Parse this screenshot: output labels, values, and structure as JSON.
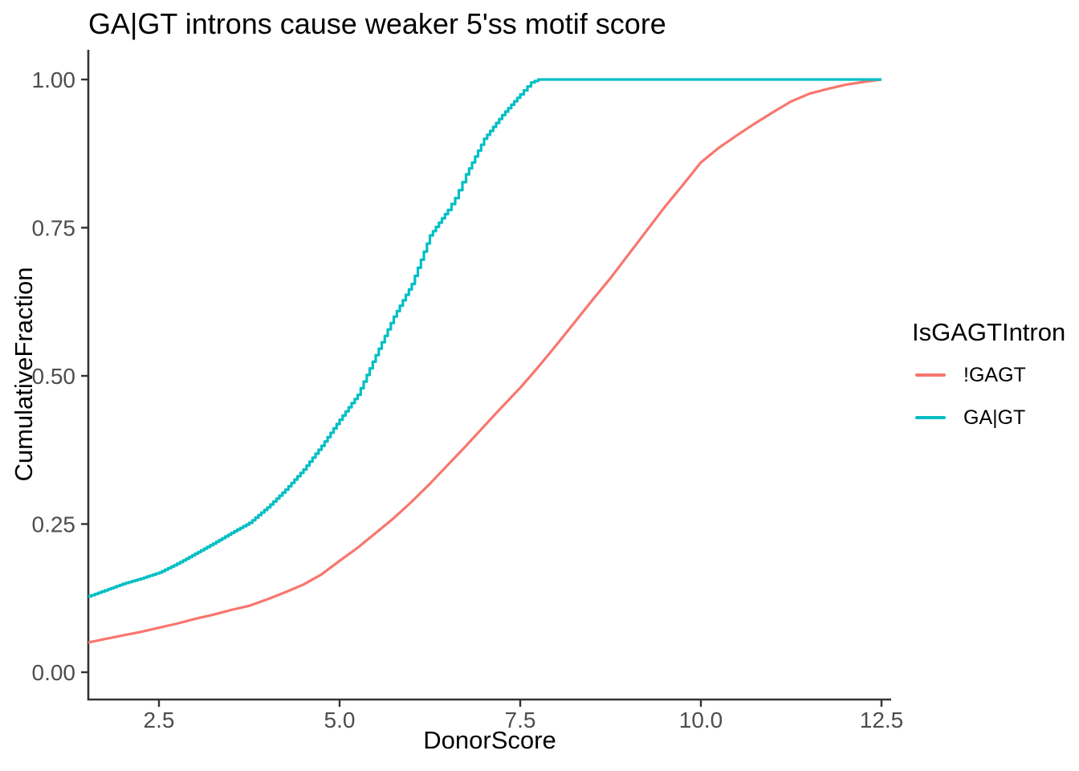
{
  "title": "GA|GT introns cause weaker 5'ss motif score",
  "x_axis": {
    "label": "DonorScore",
    "ticks": [
      {
        "value": 2.5,
        "label": "2.5"
      },
      {
        "value": 5.0,
        "label": "5.0"
      },
      {
        "value": 7.5,
        "label": "7.5"
      },
      {
        "value": 10.0,
        "label": "10.0"
      },
      {
        "value": 12.5,
        "label": "12.5"
      }
    ],
    "range": [
      1.52,
      12.63
    ]
  },
  "y_axis": {
    "label": "CumulativeFraction",
    "ticks": [
      {
        "value": 0.0,
        "label": "0.00"
      },
      {
        "value": 0.25,
        "label": "0.25"
      },
      {
        "value": 0.5,
        "label": "0.50"
      },
      {
        "value": 0.75,
        "label": "0.75"
      },
      {
        "value": 1.0,
        "label": "1.00"
      }
    ],
    "range": [
      -0.05,
      1.05
    ]
  },
  "legend": {
    "title": "IsGAGTIntron",
    "entries": [
      {
        "label": "!GAGT",
        "color": "#F8766D"
      },
      {
        "label": "GA|GT",
        "color": "#00BFC4"
      }
    ]
  },
  "colors": {
    "axis_line": "#333333",
    "tick_label": "#4D4D4D",
    "text": "#000000",
    "background": "#FFFFFF",
    "series_not_gagt": "#F8766D",
    "series_gagt": "#00BFC4"
  },
  "chart_data": {
    "type": "line",
    "subtype": "ecdf",
    "title": "GA|GT introns cause weaker 5'ss motif score",
    "xlabel": "DonorScore",
    "ylabel": "CumulativeFraction",
    "xlim": [
      1.52,
      12.63
    ],
    "ylim": [
      -0.05,
      1.05
    ],
    "grid": false,
    "legend_position": "right",
    "legend_title": "IsGAGTIntron",
    "series": [
      {
        "name": "!GAGT",
        "color": "#F8766D",
        "style": "smooth",
        "points": [
          [
            1.52,
            0.05
          ],
          [
            1.75,
            0.056
          ],
          [
            2.0,
            0.062
          ],
          [
            2.25,
            0.068
          ],
          [
            2.5,
            0.075
          ],
          [
            2.75,
            0.082
          ],
          [
            3.0,
            0.09
          ],
          [
            3.25,
            0.097
          ],
          [
            3.5,
            0.105
          ],
          [
            3.75,
            0.112
          ],
          [
            4.0,
            0.123
          ],
          [
            4.25,
            0.135
          ],
          [
            4.5,
            0.148
          ],
          [
            4.75,
            0.165
          ],
          [
            5.0,
            0.188
          ],
          [
            5.25,
            0.21
          ],
          [
            5.5,
            0.235
          ],
          [
            5.75,
            0.26
          ],
          [
            6.0,
            0.288
          ],
          [
            6.25,
            0.318
          ],
          [
            6.5,
            0.35
          ],
          [
            6.75,
            0.382
          ],
          [
            7.0,
            0.415
          ],
          [
            7.25,
            0.448
          ],
          [
            7.5,
            0.48
          ],
          [
            7.75,
            0.515
          ],
          [
            8.0,
            0.552
          ],
          [
            8.25,
            0.59
          ],
          [
            8.5,
            0.628
          ],
          [
            8.75,
            0.665
          ],
          [
            9.0,
            0.705
          ],
          [
            9.25,
            0.745
          ],
          [
            9.5,
            0.785
          ],
          [
            9.75,
            0.822
          ],
          [
            10.0,
            0.86
          ],
          [
            10.25,
            0.885
          ],
          [
            10.5,
            0.906
          ],
          [
            10.75,
            0.926
          ],
          [
            11.0,
            0.945
          ],
          [
            11.25,
            0.963
          ],
          [
            11.5,
            0.976
          ],
          [
            11.75,
            0.984
          ],
          [
            12.0,
            0.991
          ],
          [
            12.25,
            0.996
          ],
          [
            12.5,
            1.0
          ]
        ]
      },
      {
        "name": "GA|GT",
        "color": "#00BFC4",
        "style": "step",
        "points": [
          [
            1.52,
            0.128
          ],
          [
            1.75,
            0.138
          ],
          [
            2.0,
            0.149
          ],
          [
            2.25,
            0.158
          ],
          [
            2.5,
            0.168
          ],
          [
            2.75,
            0.183
          ],
          [
            3.0,
            0.2
          ],
          [
            3.25,
            0.217
          ],
          [
            3.5,
            0.235
          ],
          [
            3.75,
            0.252
          ],
          [
            4.0,
            0.278
          ],
          [
            4.25,
            0.308
          ],
          [
            4.5,
            0.342
          ],
          [
            4.75,
            0.382
          ],
          [
            5.0,
            0.426
          ],
          [
            5.25,
            0.468
          ],
          [
            5.5,
            0.535
          ],
          [
            5.75,
            0.6
          ],
          [
            6.0,
            0.655
          ],
          [
            6.25,
            0.737
          ],
          [
            6.5,
            0.78
          ],
          [
            6.6,
            0.8
          ],
          [
            6.75,
            0.84
          ],
          [
            7.0,
            0.9
          ],
          [
            7.25,
            0.94
          ],
          [
            7.5,
            0.975
          ],
          [
            7.65,
            0.995
          ],
          [
            7.75,
            1.0
          ],
          [
            12.5,
            1.0
          ]
        ]
      }
    ]
  }
}
